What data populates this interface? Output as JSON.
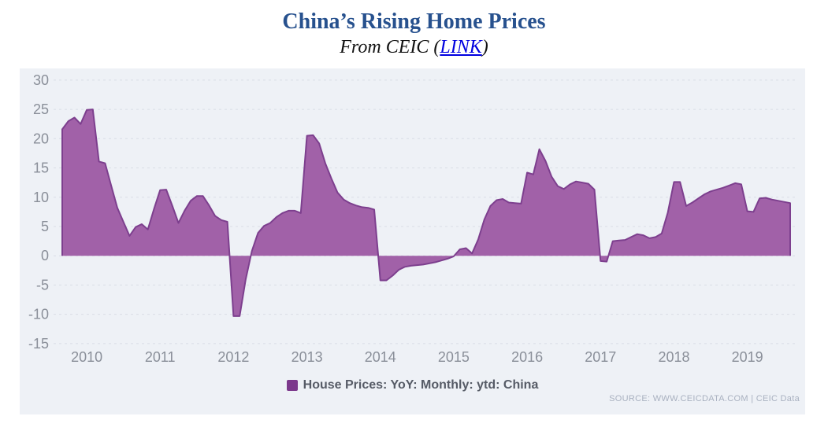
{
  "page": {
    "background": "#ffffff"
  },
  "header": {
    "title": "China’s Rising Home Prices",
    "title_color": "#27518e",
    "subtitle_prefix": "From CEIC (",
    "link_text": "LINK",
    "subtitle_suffix": ")",
    "link_color": "#0000e0"
  },
  "chart_data": {
    "type": "area",
    "title": "China’s Rising Home Prices",
    "subtitle": "From CEIC (LINK)",
    "series": [
      {
        "name": "House Prices: YoY: Monthly: ytd: China",
        "frequency": "monthly",
        "start_month": "2009-09",
        "end_month": "2019-08",
        "values": [
          21.6,
          23.0,
          23.6,
          22.5,
          24.9,
          25.0,
          16.1,
          15.8,
          12.0,
          8.2,
          5.8,
          3.4,
          4.9,
          5.4,
          4.5,
          8.0,
          11.2,
          11.3,
          8.5,
          5.6,
          7.7,
          9.4,
          10.2,
          10.2,
          8.6,
          6.8,
          6.1,
          5.8,
          -10.3,
          -10.3,
          -4.0,
          0.8,
          3.9,
          5.1,
          5.6,
          6.6,
          7.3,
          7.7,
          7.7,
          7.3,
          20.5,
          20.6,
          19.2,
          15.8,
          13.2,
          10.8,
          9.6,
          9.0,
          8.6,
          8.3,
          8.2,
          7.9,
          -4.2,
          -4.2,
          -3.4,
          -2.4,
          -1.9,
          -1.7,
          -1.6,
          -1.5,
          -1.3,
          -1.1,
          -0.8,
          -0.5,
          -0.1,
          1.1,
          1.3,
          0.4,
          2.8,
          6.2,
          8.5,
          9.5,
          9.7,
          9.1,
          9.0,
          8.9,
          14.2,
          13.9,
          18.2,
          16.2,
          13.5,
          11.9,
          11.4,
          12.2,
          12.7,
          12.5,
          12.3,
          11.3,
          -0.9,
          -1.0,
          2.5,
          2.6,
          2.7,
          3.2,
          3.7,
          3.5,
          3.0,
          3.2,
          3.8,
          7.4,
          12.6,
          12.6,
          8.5,
          9.1,
          9.8,
          10.5,
          11.0,
          11.3,
          11.6,
          12.0,
          12.4,
          12.2,
          7.6,
          7.5,
          9.8,
          9.9,
          9.6,
          9.4,
          9.2,
          9.0
        ]
      }
    ],
    "x_tick_labels": [
      "2010",
      "2011",
      "2012",
      "2013",
      "2014",
      "2015",
      "2016",
      "2017",
      "2018",
      "2019"
    ],
    "y_ticks": [
      30,
      25,
      20,
      15,
      10,
      5,
      0,
      -5,
      -10,
      -15
    ],
    "ylim": [
      -17.5,
      31.5
    ],
    "grid": "horizontal-dashed",
    "legend_position": "bottom-center",
    "area_fill_color": "#a161a8",
    "area_line_color": "#7d3f8e",
    "panel_background": "#eef1f6",
    "grid_color": "#d9dde6",
    "tick_label_color": "#8a8f99"
  },
  "legend": {
    "label": "House Prices: YoY: Monthly: ytd: China",
    "swatch_color": "#7c398c"
  },
  "source": {
    "text": "SOURCE: WWW.CEICDATA.COM | CEIC Data",
    "color": "#a9b1c0"
  }
}
